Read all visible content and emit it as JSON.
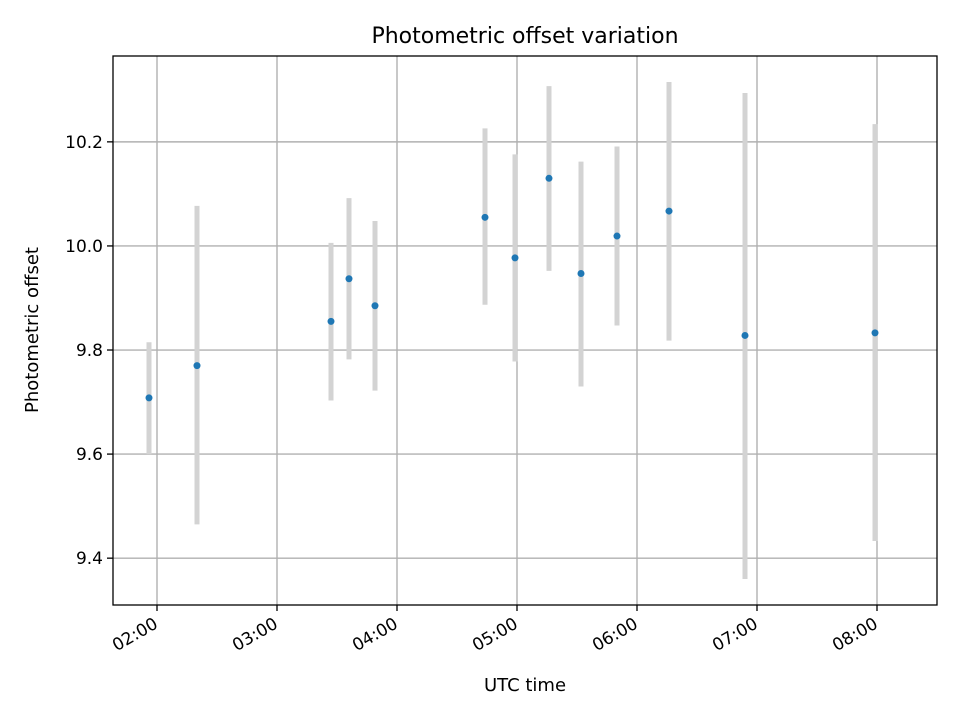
{
  "chart_data": {
    "type": "scatter",
    "title": "Photometric offset variation",
    "xlabel": "UTC time",
    "ylabel": "Photometric offset",
    "x_ticks": [
      "02:00",
      "03:00",
      "04:00",
      "05:00",
      "06:00",
      "07:00",
      "08:00"
    ],
    "y_ticks": [
      "9.4",
      "9.6",
      "9.8",
      "10.0",
      "10.2"
    ],
    "xlim": [
      "01:38",
      "08:30"
    ],
    "ylim": [
      9.31,
      10.365
    ],
    "grid": true,
    "series": [
      {
        "marker_color": "#1f77b4",
        "errorbar_color": "#d3d3d3",
        "points": [
          {
            "x": "01:56",
            "y": 9.708,
            "y_low": 9.6,
            "y_high": 9.815
          },
          {
            "x": "02:20",
            "y": 9.77,
            "y_low": 9.465,
            "y_high": 10.077
          },
          {
            "x": "03:27",
            "y": 9.855,
            "y_low": 9.703,
            "y_high": 10.006
          },
          {
            "x": "03:36",
            "y": 9.937,
            "y_low": 9.782,
            "y_high": 10.092
          },
          {
            "x": "03:49",
            "y": 9.885,
            "y_low": 9.722,
            "y_high": 10.048
          },
          {
            "x": "04:44",
            "y": 10.055,
            "y_low": 9.887,
            "y_high": 10.226
          },
          {
            "x": "04:59",
            "y": 9.977,
            "y_low": 9.778,
            "y_high": 10.176
          },
          {
            "x": "05:16",
            "y": 10.13,
            "y_low": 9.952,
            "y_high": 10.307
          },
          {
            "x": "05:32",
            "y": 9.947,
            "y_low": 9.73,
            "y_high": 10.162
          },
          {
            "x": "05:50",
            "y": 10.019,
            "y_low": 9.847,
            "y_high": 10.191
          },
          {
            "x": "06:16",
            "y": 10.067,
            "y_low": 9.818,
            "y_high": 10.315
          },
          {
            "x": "06:54",
            "y": 9.828,
            "y_low": 9.36,
            "y_high": 10.294
          },
          {
            "x": "07:59",
            "y": 9.833,
            "y_low": 9.433,
            "y_high": 10.234
          }
        ]
      }
    ]
  }
}
